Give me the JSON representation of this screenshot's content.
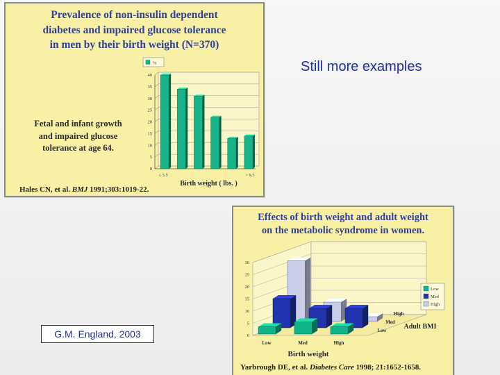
{
  "right_title": "Still more examples",
  "credit": "G.M. England, 2003",
  "slide1": {
    "title_lines": [
      "Prevalence of non-insulin dependent",
      "diabetes and impaired glucose tolerance",
      "in men by their birth weight (N=370)"
    ],
    "caption_lines": [
      "Fetal and infant growth",
      "and impaired glucose",
      "tolerance at age 64."
    ],
    "citation": {
      "authors": "Hales CN, et al. ",
      "journal": "BMJ",
      "details": " 1991;303:1019-22."
    },
    "chart_data": {
      "type": "bar",
      "legend": [
        "%"
      ],
      "x_tick_labels": [
        "≤ 5.5",
        "> 9.5"
      ],
      "xlabel": "Birth weight ( lbs. )",
      "yticks": [
        "0",
        "5",
        "10",
        "15",
        "20",
        "25",
        "30",
        "35",
        "40"
      ],
      "ylim": [
        0,
        40
      ],
      "values": [
        40,
        34,
        31,
        22,
        13,
        14
      ],
      "bar_color": "#18b386"
    }
  },
  "slide2": {
    "title_lines": [
      "Effects of birth weight and adult weight",
      "on the metabolic syndrome in women."
    ],
    "citation": {
      "authors": "Yarbrough DE, et al. ",
      "journal": "Diabetes Care",
      "details": " 1998; 21:1652-1658."
    },
    "chart_data": {
      "type": "bar3d",
      "xlabel": "Birth weight",
      "categories": [
        "Low",
        "Med",
        "High"
      ],
      "depth_label": "Adult BMI",
      "depth_categories": [
        "Low",
        "Med",
        "High"
      ],
      "yticks": [
        "0",
        "5",
        "10",
        "15",
        "20",
        "25",
        "30"
      ],
      "ylim": [
        0,
        30
      ],
      "legend": [
        "Low",
        "Med",
        "High"
      ],
      "colors": {
        "Low": "#12b58a",
        "Med": "#2233b0",
        "High": "#c8cde8"
      },
      "series": [
        {
          "name": "Low",
          "values": [
            3,
            5,
            3
          ]
        },
        {
          "name": "Med",
          "values": [
            12,
            8,
            8
          ]
        },
        {
          "name": "High",
          "values": [
            25,
            8,
            2
          ]
        }
      ]
    }
  }
}
